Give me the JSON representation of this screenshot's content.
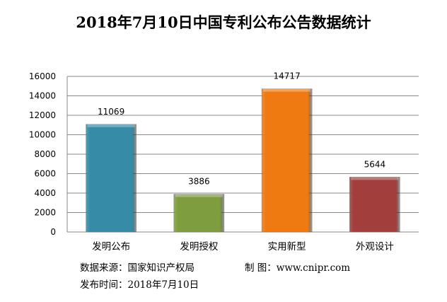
{
  "chart_data": {
    "type": "bar",
    "title": "2018年7月10日中国专利公布公告数据统计",
    "categories": [
      "发明公布",
      "发明授权",
      "实用新型",
      "外观设计"
    ],
    "values": [
      11069,
      3886,
      14717,
      5644
    ],
    "data_labels": [
      "11069",
      "3886",
      "14717",
      "5644"
    ],
    "colors": [
      "#368ba6",
      "#7e9d3f",
      "#f07a12",
      "#a23e3c"
    ],
    "ylim": [
      0,
      16000
    ],
    "yticks": [
      "0",
      "2000",
      "4000",
      "6000",
      "8000",
      "10000",
      "12000",
      "14000",
      "16000"
    ],
    "grid": true,
    "xlabel": "",
    "ylabel": ""
  },
  "footer": {
    "source": "数据来源：国家知识产权局",
    "maker": "制 图：www.cnipr.com",
    "date": "发布时间：2018年7月10日"
  }
}
